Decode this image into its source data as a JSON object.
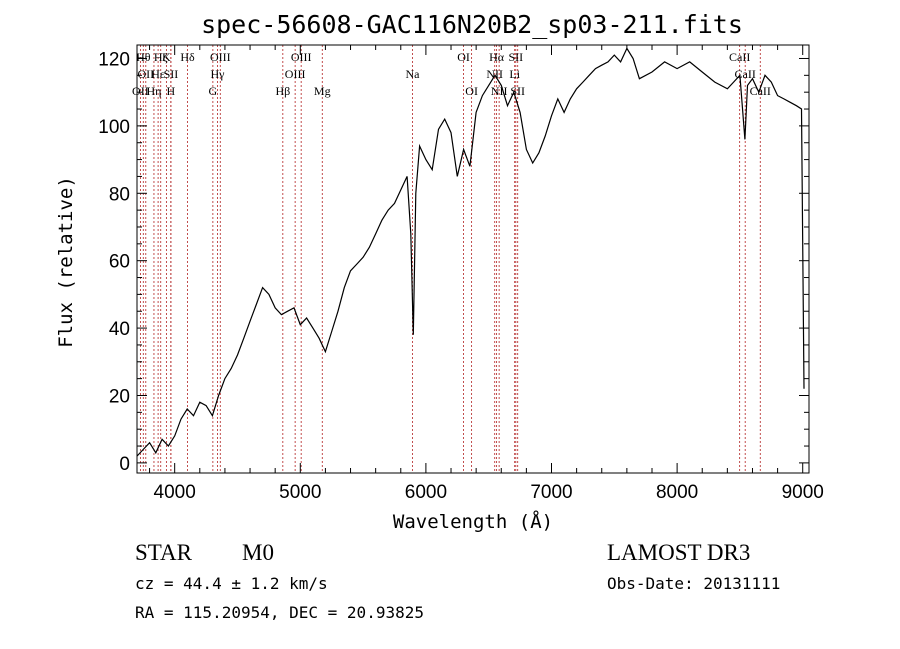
{
  "chart_data": {
    "type": "line",
    "title": "spec-56608-GAC116N20B2_sp03-211.fits",
    "xlabel": "Wavelength (Å)",
    "ylabel": "Flux (relative)",
    "xlim": [
      3700,
      9050
    ],
    "ylim": [
      -3,
      124
    ],
    "xticks": [
      4000,
      5000,
      6000,
      7000,
      8000,
      9000
    ],
    "yticks": [
      0,
      20,
      40,
      60,
      80,
      100,
      120
    ],
    "series": [
      {
        "name": "flux",
        "x": [
          3700,
          3750,
          3800,
          3850,
          3900,
          3950,
          4000,
          4050,
          4100,
          4150,
          4200,
          4250,
          4300,
          4350,
          4400,
          4450,
          4500,
          4550,
          4600,
          4650,
          4700,
          4750,
          4800,
          4850,
          4900,
          4950,
          5000,
          5050,
          5100,
          5150,
          5200,
          5250,
          5300,
          5350,
          5400,
          5450,
          5500,
          5550,
          5600,
          5650,
          5700,
          5750,
          5800,
          5850,
          5880,
          5900,
          5920,
          5950,
          6000,
          6050,
          6100,
          6150,
          6200,
          6250,
          6300,
          6350,
          6400,
          6450,
          6500,
          6550,
          6600,
          6650,
          6700,
          6750,
          6800,
          6850,
          6900,
          6950,
          7000,
          7050,
          7100,
          7150,
          7200,
          7250,
          7300,
          7350,
          7400,
          7450,
          7500,
          7550,
          7600,
          7650,
          7700,
          7800,
          7900,
          8000,
          8100,
          8200,
          8300,
          8400,
          8450,
          8500,
          8540,
          8560,
          8600,
          8650,
          8700,
          8750,
          8800,
          8850,
          8900,
          8950,
          8990,
          9010
        ],
        "y": [
          2,
          4,
          6,
          3,
          7,
          5,
          8,
          13,
          16,
          14,
          18,
          17,
          14,
          20,
          25,
          28,
          32,
          37,
          42,
          47,
          52,
          50,
          46,
          44,
          45,
          46,
          41,
          43,
          40,
          37,
          33,
          39,
          45,
          52,
          57,
          59,
          61,
          64,
          68,
          72,
          75,
          77,
          81,
          85,
          68,
          38,
          80,
          94,
          90,
          87,
          99,
          102,
          98,
          85,
          93,
          88,
          104,
          109,
          112,
          115,
          112,
          106,
          110,
          104,
          93,
          89,
          92,
          97,
          103,
          108,
          104,
          108,
          111,
          113,
          115,
          117,
          118,
          119,
          121,
          119,
          123,
          120,
          114,
          116,
          119,
          117,
          119,
          116,
          113,
          111,
          113,
          115,
          96,
          112,
          114,
          110,
          115,
          113,
          109,
          108,
          107,
          106,
          105,
          22
        ]
      }
    ],
    "line_markers": [
      {
        "wl": 3727,
        "label": "OII",
        "row": 3
      },
      {
        "wl": 3750,
        "label": "Hθ",
        "row": 1
      },
      {
        "wl": 3770,
        "label": "OII",
        "row": 2
      },
      {
        "wl": 3835,
        "label": "Hη",
        "row": 3
      },
      {
        "wl": 3868,
        "label": "Hε",
        "row": 2
      },
      {
        "wl": 3889,
        "label": "Hζ",
        "row": 1
      },
      {
        "wl": 3934,
        "label": "K",
        "row": 1
      },
      {
        "wl": 3969,
        "label": "H",
        "row": 3
      },
      {
        "wl": 3970,
        "label": "SII",
        "row": 2
      },
      {
        "wl": 4102,
        "label": "Hδ",
        "row": 1
      },
      {
        "wl": 4304,
        "label": "G",
        "row": 3
      },
      {
        "wl": 4341,
        "label": "Hγ",
        "row": 2
      },
      {
        "wl": 4363,
        "label": "OIII",
        "row": 1
      },
      {
        "wl": 4861,
        "label": "Hβ",
        "row": 3
      },
      {
        "wl": 4959,
        "label": "OIII",
        "row": 2
      },
      {
        "wl": 5007,
        "label": "OIII",
        "row": 1
      },
      {
        "wl": 5175,
        "label": "Mg",
        "row": 3
      },
      {
        "wl": 5893,
        "label": "Na",
        "row": 2
      },
      {
        "wl": 6300,
        "label": "OI",
        "row": 1
      },
      {
        "wl": 6364,
        "label": "OI",
        "row": 3
      },
      {
        "wl": 6548,
        "label": "NII",
        "row": 2
      },
      {
        "wl": 6563,
        "label": "Hα",
        "row": 1
      },
      {
        "wl": 6583,
        "label": "NII",
        "row": 3
      },
      {
        "wl": 6707,
        "label": "Li",
        "row": 2
      },
      {
        "wl": 6716,
        "label": "SII",
        "row": 1
      },
      {
        "wl": 6731,
        "label": "SII",
        "row": 3
      },
      {
        "wl": 8498,
        "label": "CaII",
        "row": 1
      },
      {
        "wl": 8542,
        "label": "CaII",
        "row": 2
      },
      {
        "wl": 8662,
        "label": "CaII",
        "row": 3
      }
    ]
  },
  "info": {
    "class": "STAR",
    "subclass": "M0",
    "cz": "cz = 44.4 ± 1.2 km/s",
    "coords": "RA = 115.20954, DEC =  20.93825",
    "survey": "LAMOST DR3",
    "obs_date": "Obs-Date: 20131111"
  }
}
